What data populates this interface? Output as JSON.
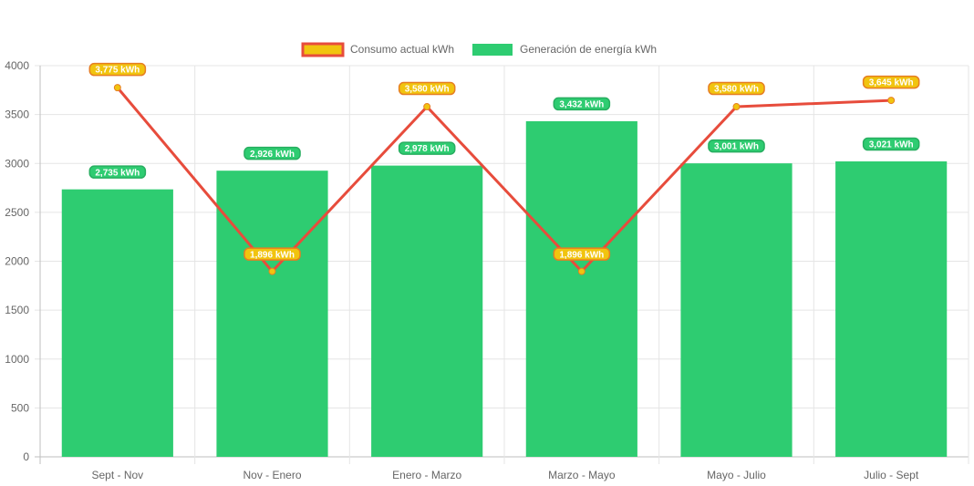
{
  "chart_data": {
    "type": "bar",
    "categories": [
      "Sept - Nov",
      "Nov - Enero",
      "Enero - Marzo",
      "Marzo - Mayo",
      "Mayo - Julio",
      "Julio - Sept"
    ],
    "series": [
      {
        "name": "Consumo actual kWh",
        "type": "line",
        "values": [
          3775,
          1896,
          3580,
          1896,
          3580,
          3645
        ],
        "labels": [
          "3,775 kWh",
          "1,896 kWh",
          "3,580 kWh",
          "1,896 kWh",
          "3,580 kWh",
          "3,645 kWh"
        ],
        "color": "#e74c3c",
        "point_color": "#f1c40f"
      },
      {
        "name": "Generación de energía kWh",
        "type": "bar",
        "values": [
          2735,
          2926,
          2978,
          3432,
          3001,
          3021
        ],
        "labels": [
          "2,735 kWh",
          "2,926 kWh",
          "2,978 kWh",
          "3,432 kWh",
          "3,001 kWh",
          "3,021 kWh"
        ],
        "color": "#2ecc71"
      }
    ],
    "y_ticks": [
      "0",
      "500",
      "1000",
      "1500",
      "2000",
      "2500",
      "3000",
      "3500",
      "4000"
    ],
    "ylim": [
      0,
      4000
    ],
    "grid": true,
    "legend_position": "top-center"
  }
}
